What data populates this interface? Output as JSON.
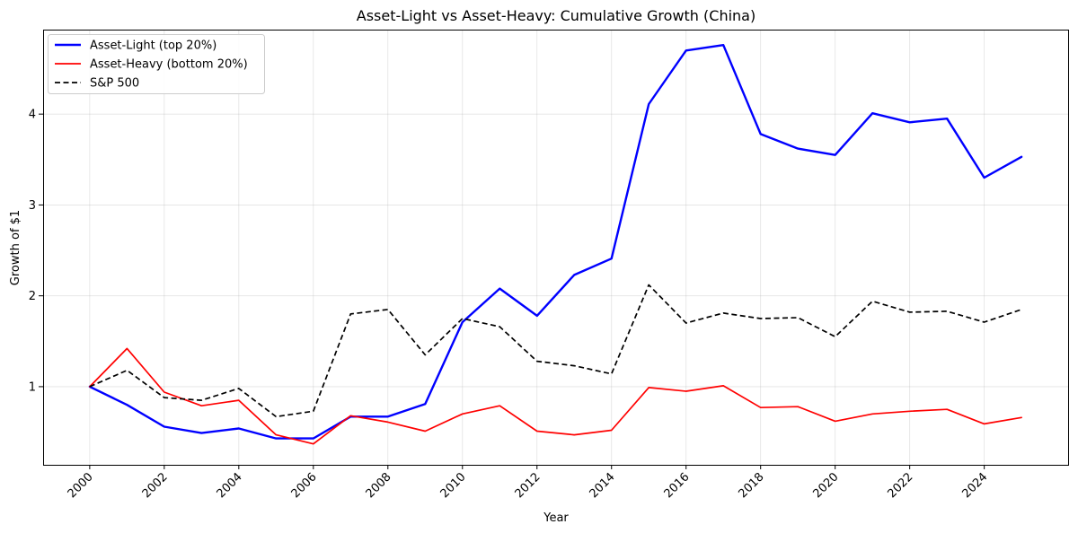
{
  "chart_data": {
    "type": "line",
    "title": "Asset-Light vs Asset-Heavy: Cumulative Growth (China)",
    "xlabel": "Year",
    "ylabel": "Growth of $1",
    "x": [
      2000,
      2001,
      2002,
      2003,
      2004,
      2005,
      2006,
      2007,
      2008,
      2009,
      2010,
      2011,
      2012,
      2013,
      2014,
      2015,
      2016,
      2017,
      2018,
      2019,
      2020,
      2021,
      2022,
      2023,
      2024,
      2025
    ],
    "xticks": [
      "2000",
      "2002",
      "2004",
      "2006",
      "2008",
      "2010",
      "2012",
      "2014",
      "2016",
      "2018",
      "2020",
      "2022",
      "2024"
    ],
    "yticks": [
      "1",
      "2",
      "3",
      "4"
    ],
    "xlim": [
      1998.75,
      2026.25
    ],
    "ylim": [
      0.14,
      4.93
    ],
    "grid": true,
    "legend_position": "top-left",
    "series": [
      {
        "name": "Asset-Light (top 20%)",
        "color": "#0000ff",
        "style": "solid",
        "values": [
          1.0,
          0.8,
          0.56,
          0.49,
          0.54,
          0.43,
          0.43,
          0.67,
          0.67,
          0.81,
          1.71,
          2.08,
          1.78,
          2.23,
          2.41,
          4.11,
          4.7,
          4.76,
          3.78,
          3.62,
          3.55,
          4.01,
          3.91,
          3.95,
          3.3,
          3.53
        ]
      },
      {
        "name": "Asset-Heavy (bottom 20%)",
        "color": "#ff0000",
        "style": "solid",
        "values": [
          1.0,
          1.42,
          0.94,
          0.79,
          0.85,
          0.47,
          0.37,
          0.68,
          0.61,
          0.51,
          0.7,
          0.79,
          0.51,
          0.47,
          0.52,
          0.99,
          0.95,
          1.01,
          0.77,
          0.78,
          0.62,
          0.7,
          0.73,
          0.75,
          0.59,
          0.66
        ]
      },
      {
        "name": "S&P 500",
        "color": "#000000",
        "style": "dashed",
        "values": [
          1.0,
          1.18,
          0.88,
          0.85,
          0.98,
          0.67,
          0.73,
          1.8,
          1.85,
          1.35,
          1.75,
          1.66,
          1.28,
          1.23,
          1.14,
          2.12,
          1.7,
          1.81,
          1.75,
          1.76,
          1.55,
          1.94,
          1.82,
          1.83,
          1.71,
          1.85
        ]
      }
    ]
  }
}
